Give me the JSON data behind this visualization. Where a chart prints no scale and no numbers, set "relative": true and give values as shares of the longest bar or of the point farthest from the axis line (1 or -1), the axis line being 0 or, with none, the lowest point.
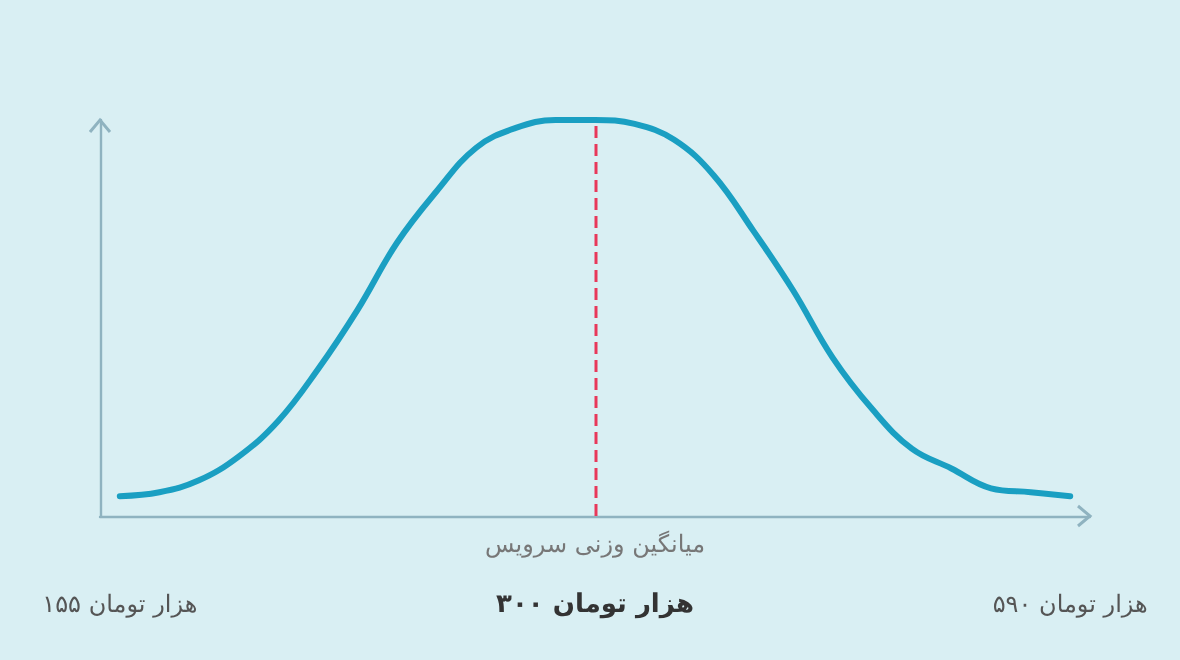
{
  "chart_data": {
    "type": "line",
    "relative": true,
    "categories": [
      "۱۵۵ هزار تومان",
      null,
      null,
      null,
      null,
      null,
      null,
      null,
      null,
      null,
      null,
      null,
      "۳۰۰ هزار تومان",
      null,
      null,
      null,
      null,
      null,
      null,
      null,
      null,
      null,
      null,
      null,
      "۵۹۰ هزار تومان"
    ],
    "series": [
      {
        "color": "#1a9fc2",
        "values": [
          0.05,
          0.06,
          0.09,
          0.15,
          0.24,
          0.37,
          0.52,
          0.69,
          0.82,
          0.93,
          0.98,
          1.0,
          1.0,
          0.99,
          0.95,
          0.86,
          0.72,
          0.57,
          0.4,
          0.27,
          0.17,
          0.12,
          0.07,
          0.06,
          0.05
        ]
      }
    ],
    "ref_lines": [
      {
        "axis": "x",
        "value": "۳۰۰ هزار تومان",
        "label": "میانگین وزنی سرویس",
        "color": "#e8385a",
        "line_style": "dashed"
      }
    ],
    "grid": false,
    "marker": "none",
    "line_style": "solid"
  }
}
